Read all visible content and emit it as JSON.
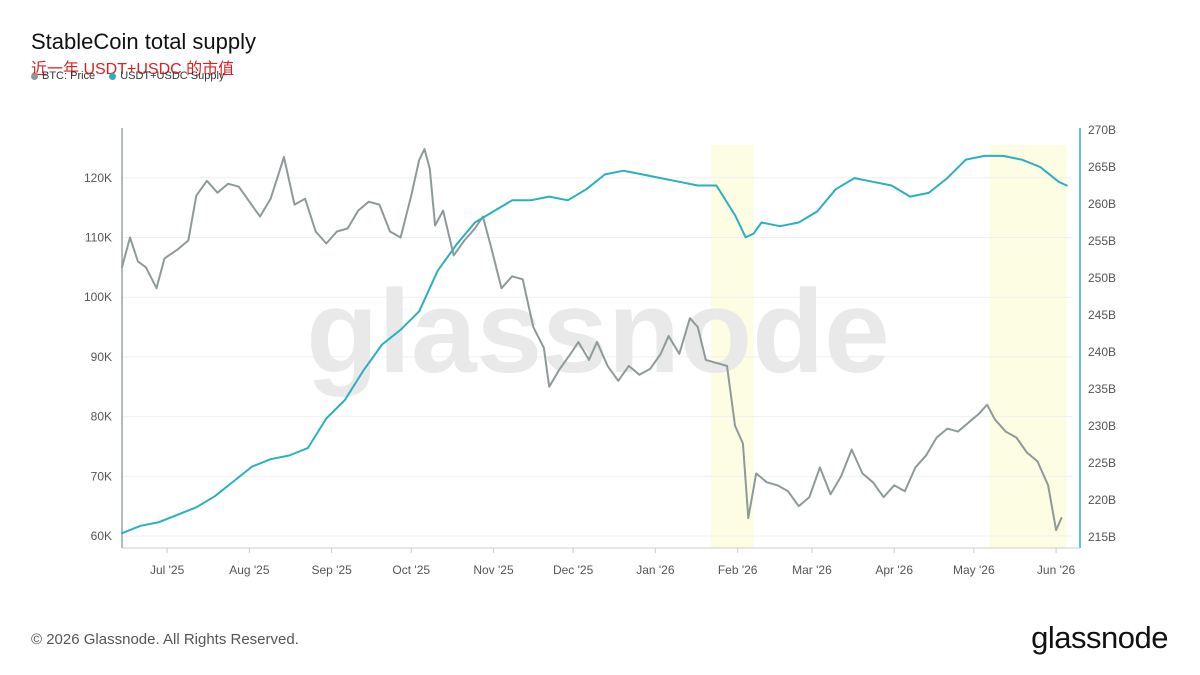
{
  "title": "StableCoin total supply",
  "subtitle": "近一年 USDT+USDC 的市值",
  "footer": {
    "copyright": "© 2026 Glassnode. All Rights Reserved.",
    "logo": "glassnode"
  },
  "watermark": "glassnode",
  "colors": {
    "btc": "#8e9a99",
    "supply": "#2ab0be",
    "highlight": "#fdfde4"
  },
  "chart_data": {
    "type": "line",
    "x_ticks": [
      "Jul '25",
      "Aug '25",
      "Sep '25",
      "Oct '25",
      "Nov '25",
      "Dec '25",
      "Jan '26",
      "Feb '26",
      "Mar '26",
      "Apr '26",
      "May '26",
      "Jun '26"
    ],
    "x_range": [
      "2025-06-14",
      "2026-06-07"
    ],
    "y_left": {
      "ticks": [
        "60K",
        "70K",
        "80K",
        "90K",
        "100K",
        "110K",
        "120K"
      ],
      "range": [
        58000,
        128000
      ]
    },
    "y_right": {
      "ticks": [
        "215B",
        "220B",
        "225B",
        "230B",
        "235B",
        "240B",
        "245B",
        "250B",
        "255B",
        "260B",
        "265B",
        "270B"
      ],
      "range": [
        213.5,
        270
      ]
    },
    "highlight_ranges": [
      [
        "2026-01-22",
        "2026-02-07"
      ],
      [
        "2026-05-07",
        "2026-06-05"
      ]
    ],
    "legend_placement": "top-left",
    "series": [
      {
        "name": "BTC: Price",
        "axis": "left",
        "points": [
          [
            "2025-06-14",
            105000
          ],
          [
            "2025-06-17",
            110000
          ],
          [
            "2025-06-20",
            106000
          ],
          [
            "2025-06-23",
            105000
          ],
          [
            "2025-06-27",
            101500
          ],
          [
            "2025-06-30",
            106500
          ],
          [
            "2025-07-05",
            108000
          ],
          [
            "2025-07-09",
            109500
          ],
          [
            "2025-07-12",
            117000
          ],
          [
            "2025-07-16",
            119500
          ],
          [
            "2025-07-20",
            117500
          ],
          [
            "2025-07-24",
            119000
          ],
          [
            "2025-07-28",
            118500
          ],
          [
            "2025-08-01",
            116000
          ],
          [
            "2025-08-05",
            113500
          ],
          [
            "2025-08-09",
            116500
          ],
          [
            "2025-08-13",
            122000
          ],
          [
            "2025-08-14",
            123500
          ],
          [
            "2025-08-18",
            115500
          ],
          [
            "2025-08-22",
            116500
          ],
          [
            "2025-08-26",
            111000
          ],
          [
            "2025-08-30",
            109000
          ],
          [
            "2025-09-03",
            111000
          ],
          [
            "2025-09-07",
            111500
          ],
          [
            "2025-09-11",
            114500
          ],
          [
            "2025-09-15",
            116000
          ],
          [
            "2025-09-19",
            115500
          ],
          [
            "2025-09-23",
            111000
          ],
          [
            "2025-09-27",
            110000
          ],
          [
            "2025-10-01",
            117000
          ],
          [
            "2025-10-04",
            123000
          ],
          [
            "2025-10-06",
            124800
          ],
          [
            "2025-10-08",
            121500
          ],
          [
            "2025-10-10",
            112000
          ],
          [
            "2025-10-13",
            114500
          ],
          [
            "2025-10-17",
            107000
          ],
          [
            "2025-10-21",
            109500
          ],
          [
            "2025-10-25",
            111500
          ],
          [
            "2025-10-28",
            113500
          ],
          [
            "2025-10-31",
            108500
          ],
          [
            "2025-11-04",
            101500
          ],
          [
            "2025-11-08",
            103500
          ],
          [
            "2025-11-12",
            103000
          ],
          [
            "2025-11-16",
            95000
          ],
          [
            "2025-11-20",
            91500
          ],
          [
            "2025-11-22",
            85000
          ],
          [
            "2025-11-26",
            88000
          ],
          [
            "2025-11-30",
            90500
          ],
          [
            "2025-12-03",
            92500
          ],
          [
            "2025-12-07",
            89500
          ],
          [
            "2025-12-10",
            92500
          ],
          [
            "2025-12-14",
            88500
          ],
          [
            "2025-12-18",
            86000
          ],
          [
            "2025-12-22",
            88500
          ],
          [
            "2025-12-26",
            87000
          ],
          [
            "2025-12-30",
            88000
          ],
          [
            "2026-01-03",
            90500
          ],
          [
            "2026-01-06",
            93500
          ],
          [
            "2026-01-10",
            90500
          ],
          [
            "2026-01-14",
            96500
          ],
          [
            "2026-01-17",
            95000
          ],
          [
            "2026-01-20",
            89500
          ],
          [
            "2026-01-24",
            89000
          ],
          [
            "2026-01-28",
            88500
          ],
          [
            "2026-01-31",
            78500
          ],
          [
            "2026-02-03",
            75500
          ],
          [
            "2026-02-05",
            63000
          ],
          [
            "2026-02-08",
            70500
          ],
          [
            "2026-02-12",
            69000
          ],
          [
            "2026-02-16",
            68500
          ],
          [
            "2026-02-20",
            67500
          ],
          [
            "2026-02-24",
            65000
          ],
          [
            "2026-02-28",
            66500
          ],
          [
            "2026-03-04",
            71500
          ],
          [
            "2026-03-08",
            67000
          ],
          [
            "2026-03-12",
            70000
          ],
          [
            "2026-03-16",
            74500
          ],
          [
            "2026-03-20",
            70500
          ],
          [
            "2026-03-24",
            69000
          ],
          [
            "2026-03-28",
            66500
          ],
          [
            "2026-04-01",
            68500
          ],
          [
            "2026-04-05",
            67500
          ],
          [
            "2026-04-09",
            71500
          ],
          [
            "2026-04-13",
            73500
          ],
          [
            "2026-04-17",
            76500
          ],
          [
            "2026-04-21",
            78000
          ],
          [
            "2026-04-25",
            77500
          ],
          [
            "2026-04-29",
            79000
          ],
          [
            "2026-05-03",
            80500
          ],
          [
            "2026-05-06",
            82000
          ],
          [
            "2026-05-09",
            79500
          ],
          [
            "2026-05-13",
            77500
          ],
          [
            "2026-05-17",
            76500
          ],
          [
            "2026-05-21",
            74000
          ],
          [
            "2026-05-25",
            72500
          ],
          [
            "2026-05-29",
            68500
          ],
          [
            "2026-06-01",
            61000
          ],
          [
            "2026-06-03",
            63000
          ]
        ]
      },
      {
        "name": "USDT+USDC Supply",
        "axis": "right",
        "points": [
          [
            "2025-06-14",
            215.5
          ],
          [
            "2025-06-21",
            216.5
          ],
          [
            "2025-06-28",
            217.0
          ],
          [
            "2025-07-05",
            218.0
          ],
          [
            "2025-07-12",
            219.0
          ],
          [
            "2025-07-19",
            220.5
          ],
          [
            "2025-07-26",
            222.5
          ],
          [
            "2025-08-02",
            224.5
          ],
          [
            "2025-08-09",
            225.5
          ],
          [
            "2025-08-16",
            226.0
          ],
          [
            "2025-08-23",
            227.0
          ],
          [
            "2025-08-30",
            231.0
          ],
          [
            "2025-09-06",
            233.5
          ],
          [
            "2025-09-13",
            237.5
          ],
          [
            "2025-09-20",
            241.0
          ],
          [
            "2025-09-27",
            243.0
          ],
          [
            "2025-10-04",
            245.5
          ],
          [
            "2025-10-11",
            251.0
          ],
          [
            "2025-10-18",
            254.5
          ],
          [
            "2025-10-25",
            257.5
          ],
          [
            "2025-11-01",
            259.0
          ],
          [
            "2025-11-08",
            260.5
          ],
          [
            "2025-11-15",
            260.5
          ],
          [
            "2025-11-22",
            261.0
          ],
          [
            "2025-11-29",
            260.5
          ],
          [
            "2025-12-06",
            262.0
          ],
          [
            "2025-12-13",
            264.0
          ],
          [
            "2025-12-20",
            264.5
          ],
          [
            "2025-12-27",
            264.0
          ],
          [
            "2026-01-03",
            263.5
          ],
          [
            "2026-01-10",
            263.0
          ],
          [
            "2026-01-17",
            262.5
          ],
          [
            "2026-01-24",
            262.5
          ],
          [
            "2026-01-31",
            258.5
          ],
          [
            "2026-02-04",
            255.5
          ],
          [
            "2026-02-07",
            256.0
          ],
          [
            "2026-02-10",
            257.5
          ],
          [
            "2026-02-17",
            257.0
          ],
          [
            "2026-02-24",
            257.5
          ],
          [
            "2026-03-03",
            259.0
          ],
          [
            "2026-03-10",
            262.0
          ],
          [
            "2026-03-17",
            263.5
          ],
          [
            "2026-03-24",
            263.0
          ],
          [
            "2026-03-31",
            262.5
          ],
          [
            "2026-04-07",
            261.0
          ],
          [
            "2026-04-14",
            261.5
          ],
          [
            "2026-04-21",
            263.5
          ],
          [
            "2026-04-28",
            266.0
          ],
          [
            "2026-05-05",
            266.5
          ],
          [
            "2026-05-12",
            266.5
          ],
          [
            "2026-05-19",
            266.0
          ],
          [
            "2026-05-26",
            265.0
          ],
          [
            "2026-06-02",
            263.0
          ],
          [
            "2026-06-05",
            262.5
          ]
        ]
      }
    ]
  }
}
